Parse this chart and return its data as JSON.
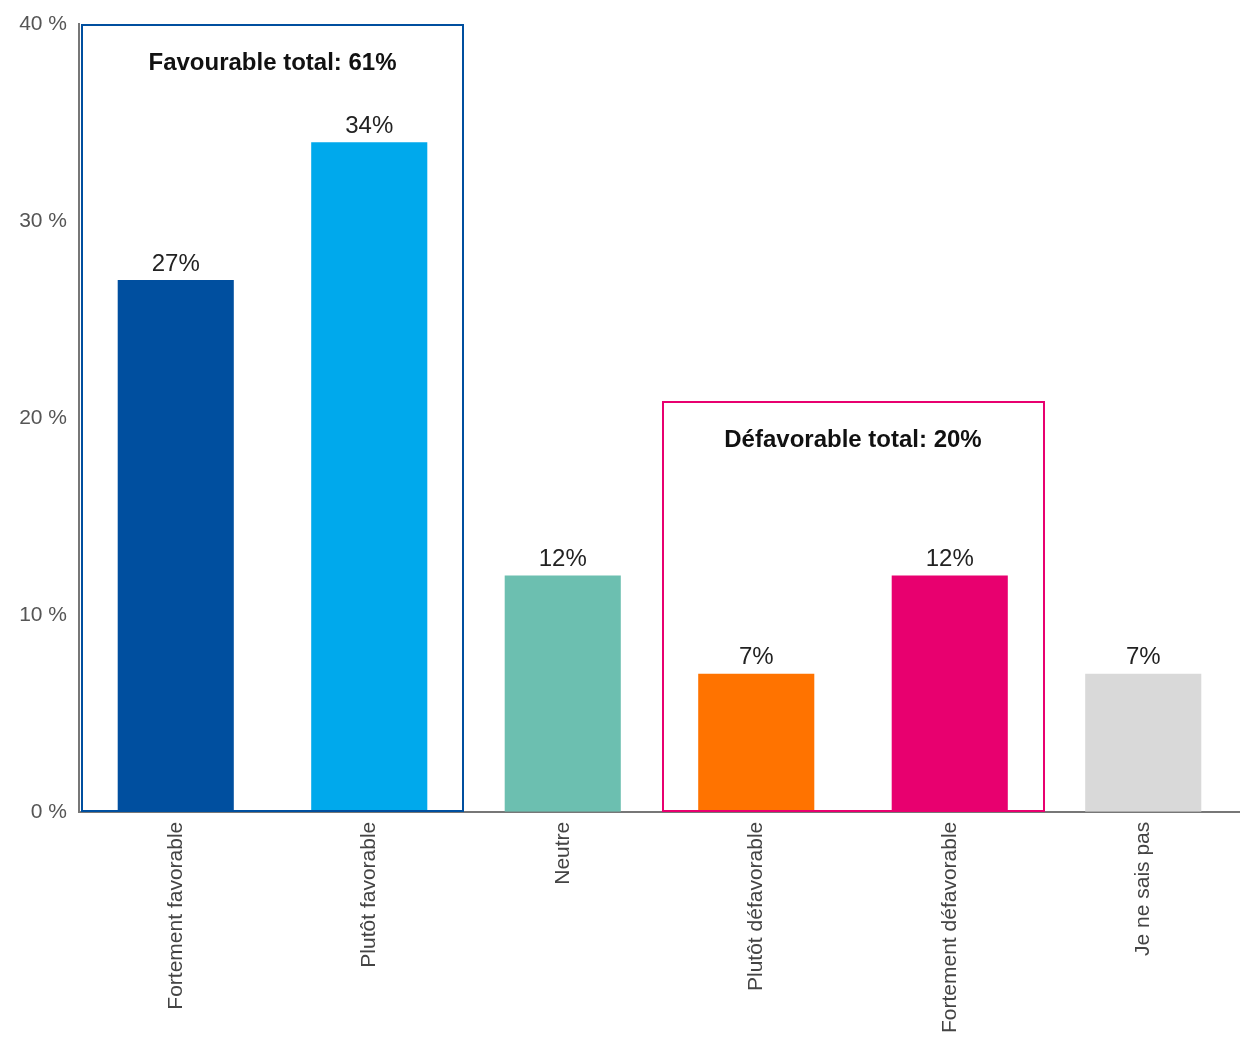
{
  "chart_data": {
    "type": "bar",
    "categories": [
      "Fortement favorable",
      "Plutôt favorable",
      "Neutre",
      "Plutôt défavorable",
      "Fortement défavorable",
      "Je ne sais pas"
    ],
    "values": [
      27,
      34,
      12,
      7,
      12,
      7
    ],
    "colors": [
      "#004f9f",
      "#00a9ec",
      "#6cbfb0",
      "#ff7300",
      "#e8006f",
      "#d9d9d9"
    ],
    "value_labels": [
      "27%",
      "34%",
      "12%",
      "7%",
      "12%",
      "7%"
    ],
    "ylim": [
      0,
      40
    ],
    "yticks": [
      {
        "value": 0,
        "label": "0 %"
      },
      {
        "value": 10,
        "label": "10 %"
      },
      {
        "value": 20,
        "label": "20 %"
      },
      {
        "value": 30,
        "label": "30 %"
      },
      {
        "value": 40,
        "label": "40 %"
      }
    ],
    "grid": false,
    "legend": false,
    "annotations": [
      "Favourable total: 61%",
      "Défavorable total: 20%"
    ]
  }
}
